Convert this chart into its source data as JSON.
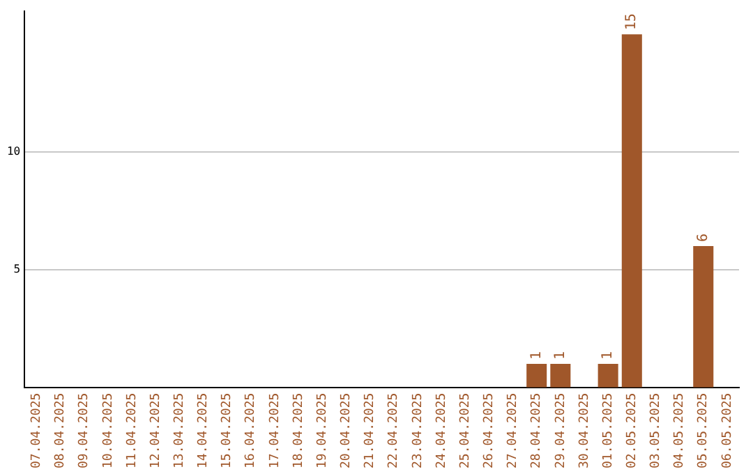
{
  "chart_data": {
    "type": "bar",
    "categories": [
      "07.04.2025",
      "08.04.2025",
      "09.04.2025",
      "10.04.2025",
      "11.04.2025",
      "12.04.2025",
      "13.04.2025",
      "14.04.2025",
      "15.04.2025",
      "16.04.2025",
      "17.04.2025",
      "18.04.2025",
      "19.04.2025",
      "20.04.2025",
      "21.04.2025",
      "22.04.2025",
      "23.04.2025",
      "24.04.2025",
      "25.04.2025",
      "26.04.2025",
      "27.04.2025",
      "28.04.2025",
      "29.04.2025",
      "30.04.2025",
      "01.05.2025",
      "02.05.2025",
      "03.05.2025",
      "04.05.2025",
      "05.05.2025",
      "06.05.2025"
    ],
    "values": [
      0,
      0,
      0,
      0,
      0,
      0,
      0,
      0,
      0,
      0,
      0,
      0,
      0,
      0,
      0,
      0,
      0,
      0,
      0,
      0,
      0,
      1,
      1,
      0,
      1,
      15,
      0,
      0,
      6,
      0
    ],
    "value_labels": [
      null,
      null,
      null,
      null,
      null,
      null,
      null,
      null,
      null,
      null,
      null,
      null,
      null,
      null,
      null,
      null,
      null,
      null,
      null,
      null,
      null,
      "1",
      "1",
      null,
      "1",
      "15",
      null,
      null,
      "6",
      null
    ],
    "color": "#a0572a",
    "ylim": [
      0,
      16
    ],
    "yticks": [
      5,
      10
    ],
    "grid": "y",
    "legend": false
  }
}
